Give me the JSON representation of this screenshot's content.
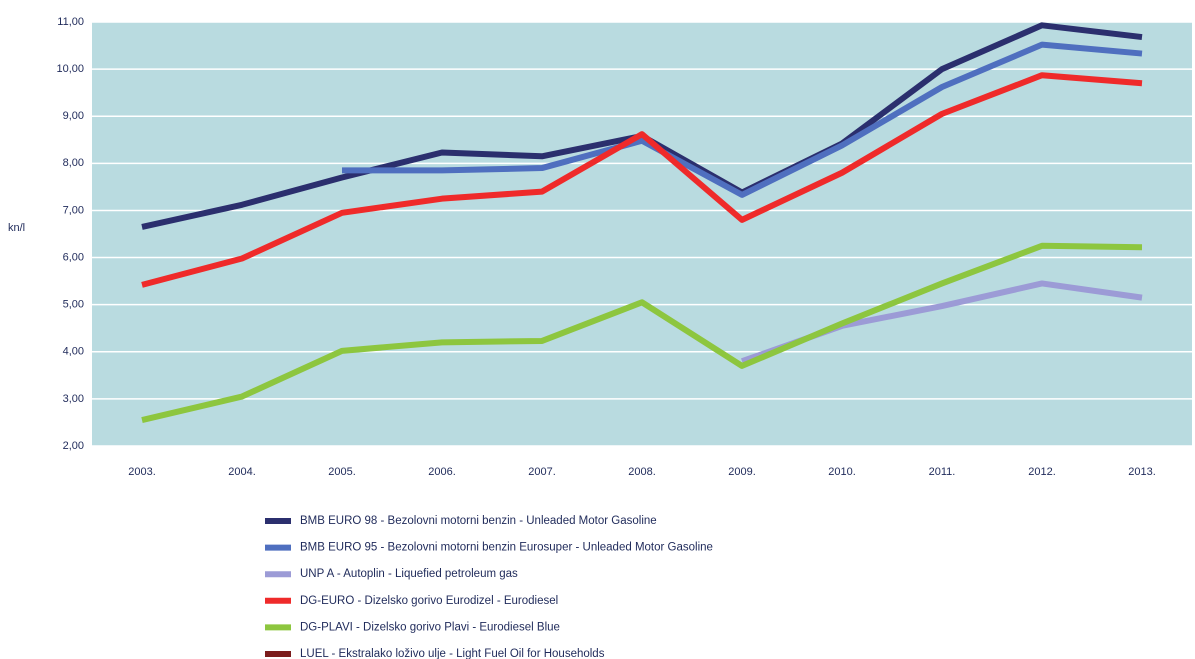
{
  "chart_data": {
    "type": "line",
    "y_label": "kn/l",
    "categories": [
      "2003.",
      "2004.",
      "2005.",
      "2006.",
      "2007.",
      "2008.",
      "2009.",
      "2010.",
      "2011.",
      "2012.",
      "2013."
    ],
    "series": [
      {
        "name": "BMB EURO 98 - Bezolovni motorni benzin - Unleaded Motor Gasoline",
        "color": "#2b2f6e",
        "values": [
          6.65,
          7.12,
          7.7,
          8.23,
          8.15,
          8.58,
          7.38,
          8.42,
          10.0,
          10.93,
          10.68
        ]
      },
      {
        "name": "BMB EURO 95 - Bezolovni motorni benzin Eurosuper - Unleaded Motor Gasoline",
        "color": "#4f6fbf",
        "values": [
          null,
          null,
          7.85,
          7.85,
          7.9,
          8.48,
          7.33,
          8.38,
          9.62,
          10.52,
          10.33
        ]
      },
      {
        "name": "UNP A - Autoplin - Liquefied petroleum gas",
        "color": "#9c9bd6",
        "values": [
          null,
          null,
          null,
          null,
          null,
          null,
          3.8,
          4.55,
          4.97,
          5.45,
          5.15
        ]
      },
      {
        "name": "DG-EURO - Dizelsko gorivo Eurodizel - Eurodiesel",
        "color": "#ef2a2a",
        "values": [
          5.42,
          5.98,
          6.95,
          7.25,
          7.4,
          8.62,
          6.8,
          7.8,
          9.05,
          9.87,
          9.7
        ]
      },
      {
        "name": "DG-PLAVI - Dizelsko gorivo Plavi - Eurodiesel Blue",
        "color": "#8dc63f",
        "values": [
          2.55,
          3.05,
          4.02,
          4.2,
          4.23,
          5.05,
          3.7,
          4.6,
          5.45,
          6.25,
          6.22
        ]
      },
      {
        "name": "LUEL - Ekstralako loživo ulje - Light Fuel Oil for Households",
        "color": "#7b1c1c",
        "values": [
          null,
          null,
          null,
          null,
          null,
          null,
          null,
          null,
          null,
          null,
          null
        ]
      }
    ],
    "ylim": [
      2,
      11
    ],
    "yticks": [
      {
        "value": 2,
        "label": "2,00"
      },
      {
        "value": 3,
        "label": "3,00"
      },
      {
        "value": 4,
        "label": "4,00"
      },
      {
        "value": 5,
        "label": "5,00"
      },
      {
        "value": 6,
        "label": "6,00"
      },
      {
        "value": 7,
        "label": "7,00"
      },
      {
        "value": 8,
        "label": "8,00"
      },
      {
        "value": 9,
        "label": "9,00"
      },
      {
        "value": 10,
        "label": "10,00"
      },
      {
        "value": 11,
        "label": "11,00"
      }
    ],
    "grid": true,
    "background": "#b9dbe0"
  }
}
